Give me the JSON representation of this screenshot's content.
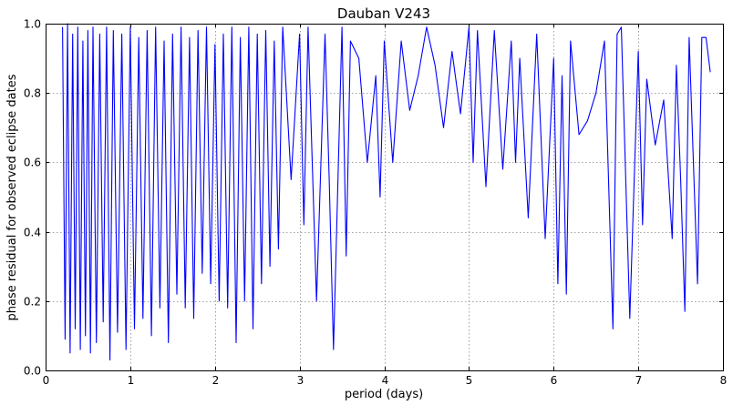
{
  "chart_data": {
    "type": "line",
    "title": "Dauban V243",
    "xlabel": "period (days)",
    "ylabel": "phase residual for observed eclipse dates",
    "xlim": [
      0,
      8
    ],
    "ylim": [
      0.0,
      1.0
    ],
    "xticks": [
      "0",
      "1",
      "2",
      "3",
      "4",
      "5",
      "6",
      "7",
      "8"
    ],
    "yticks": [
      "0.0",
      "0.2",
      "0.4",
      "0.6",
      "0.8",
      "1.0"
    ],
    "grid": true,
    "series": [
      {
        "color": "#0000ff",
        "x": [
          0.2,
          0.23,
          0.26,
          0.29,
          0.32,
          0.35,
          0.38,
          0.41,
          0.44,
          0.47,
          0.5,
          0.53,
          0.56,
          0.6,
          0.64,
          0.68,
          0.72,
          0.76,
          0.8,
          0.85,
          0.9,
          0.95,
          1.0,
          1.05,
          1.1,
          1.15,
          1.2,
          1.25,
          1.3,
          1.35,
          1.4,
          1.45,
          1.5,
          1.55,
          1.6,
          1.65,
          1.7,
          1.75,
          1.8,
          1.85,
          1.9,
          1.95,
          2.0,
          2.05,
          2.1,
          2.15,
          2.2,
          2.25,
          2.3,
          2.35,
          2.4,
          2.45,
          2.5,
          2.55,
          2.6,
          2.65,
          2.7,
          2.75,
          2.8,
          2.9,
          3.0,
          3.05,
          3.1,
          3.2,
          3.3,
          3.35,
          3.4,
          3.5,
          3.55,
          3.6,
          3.7,
          3.8,
          3.9,
          3.95,
          4.0,
          4.1,
          4.2,
          4.3,
          4.4,
          4.5,
          4.6,
          4.7,
          4.8,
          4.9,
          5.0,
          5.05,
          5.1,
          5.2,
          5.3,
          5.4,
          5.5,
          5.55,
          5.6,
          5.7,
          5.8,
          5.9,
          6.0,
          6.05,
          6.1,
          6.15,
          6.2,
          6.3,
          6.4,
          6.5,
          6.6,
          6.7,
          6.75,
          6.8,
          6.9,
          7.0,
          7.05,
          7.1,
          7.2,
          7.3,
          7.4,
          7.45,
          7.5,
          7.55,
          7.6,
          7.7,
          7.75,
          7.8,
          7.85
        ],
        "y": [
          0.99,
          0.09,
          1.0,
          0.05,
          0.97,
          0.12,
          0.99,
          0.06,
          0.95,
          0.1,
          0.98,
          0.05,
          0.99,
          0.08,
          0.97,
          0.14,
          0.99,
          0.03,
          0.98,
          0.11,
          0.97,
          0.06,
          0.99,
          0.12,
          0.96,
          0.15,
          0.98,
          0.1,
          0.99,
          0.18,
          0.95,
          0.08,
          0.97,
          0.22,
          0.99,
          0.18,
          0.96,
          0.15,
          0.98,
          0.28,
          0.99,
          0.25,
          0.94,
          0.2,
          0.97,
          0.18,
          0.99,
          0.08,
          0.96,
          0.2,
          0.99,
          0.12,
          0.97,
          0.25,
          0.98,
          0.3,
          0.95,
          0.35,
          0.99,
          0.55,
          0.97,
          0.42,
          0.99,
          0.2,
          0.97,
          0.55,
          0.06,
          0.99,
          0.33,
          0.95,
          0.9,
          0.6,
          0.85,
          0.5,
          0.95,
          0.6,
          0.95,
          0.75,
          0.85,
          0.99,
          0.88,
          0.7,
          0.92,
          0.74,
          0.99,
          0.6,
          0.98,
          0.53,
          0.98,
          0.58,
          0.95,
          0.6,
          0.9,
          0.44,
          0.97,
          0.38,
          0.9,
          0.25,
          0.85,
          0.22,
          0.95,
          0.68,
          0.72,
          0.8,
          0.95,
          0.12,
          0.97,
          0.99,
          0.15,
          0.92,
          0.42,
          0.84,
          0.65,
          0.78,
          0.38,
          0.88,
          0.55,
          0.17,
          0.96,
          0.25,
          0.96,
          0.96,
          0.86
        ]
      }
    ]
  }
}
